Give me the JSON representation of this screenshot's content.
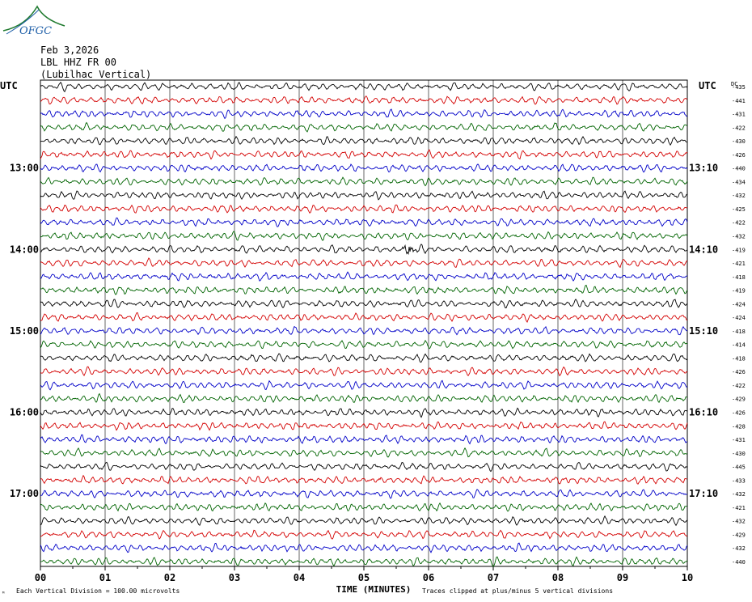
{
  "logo": {
    "text": "OFGC"
  },
  "header": {
    "date": "Feb 3,2026",
    "station": "LBL HHZ FR 00",
    "location": "(Lubilhac Vertical)"
  },
  "axis": {
    "left_label": "UTC",
    "right_label": "UTC",
    "dc_label": "DC",
    "x_title": "TIME (MINUTES)",
    "x_ticks": [
      "00",
      "01",
      "02",
      "03",
      "04",
      "05",
      "06",
      "07",
      "08",
      "09",
      "10"
    ],
    "left_hours": [
      "13:00",
      "14:00",
      "15:00",
      "16:00",
      "17:00"
    ],
    "right_hours": [
      "13:10",
      "14:10",
      "15:10",
      "16:10",
      "17:10"
    ]
  },
  "footer": {
    "corner_mark": "ᴹ",
    "scale_note": "Each Vertical Division =  100.00 microvolts",
    "clip_note": "Traces clipped at plus/minus 5 vertical divisions"
  },
  "colors": {
    "trace_cycle": [
      "#000000",
      "#d40000",
      "#0000c8",
      "#006400"
    ],
    "grid": "#000000"
  },
  "chart_data": {
    "type": "line",
    "title": "LBL HHZ FR 00 (Lubilhac Vertical)",
    "xlabel": "TIME (MINUTES)",
    "ylabel": "",
    "xlim": [
      0,
      10
    ],
    "trace_count": 36,
    "dc_offsets": [
      -435,
      -441,
      -431,
      -422,
      -430,
      -426,
      -440,
      -434,
      -432,
      -425,
      -422,
      -432,
      -419,
      -421,
      -418,
      -419,
      -424,
      -424,
      -418,
      -414,
      -418,
      -426,
      -422,
      -429,
      -426,
      -428,
      -431,
      -430,
      -445,
      -433,
      -432,
      -421,
      -432,
      -429,
      -432,
      -440
    ],
    "events": [
      {
        "trace_index": 12,
        "minute": 5.7
      }
    ],
    "grid": true
  }
}
